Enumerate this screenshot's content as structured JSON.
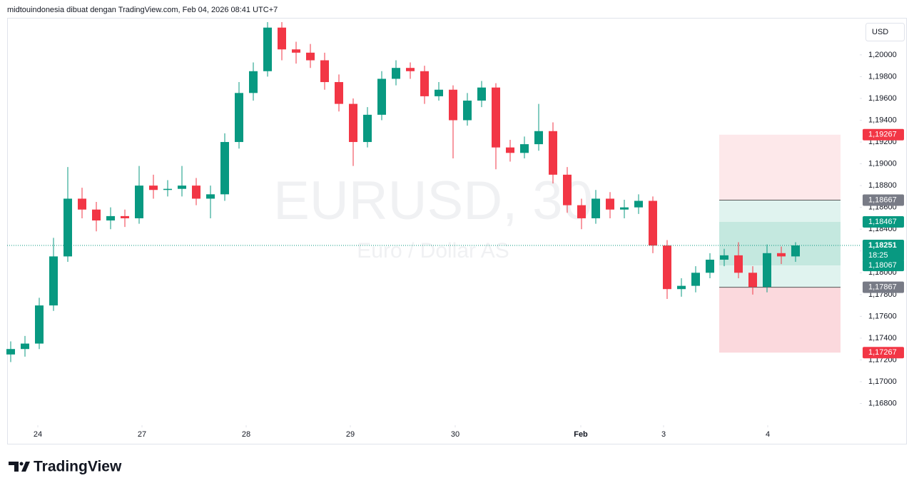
{
  "header": "midtouindonesia dibuat dengan TradingView.com, Feb 04, 2026 08:41 UTC+7",
  "brand": "TradingView",
  "currency_button": "USD",
  "chart_data": {
    "type": "candlestick",
    "symbol": "EURUSD, 30",
    "description": "Euro / Dollar AS",
    "up_color": "#089981",
    "down_color": "#f23645",
    "open": [
      1.1725,
      1.173,
      1.1735,
      1.177,
      1.1815,
      1.1868,
      1.1858,
      1.1848,
      1.1852,
      1.185,
      1.188,
      1.1876,
      1.1877,
      1.188,
      1.1868,
      1.1872,
      1.192,
      1.1965,
      1.1985,
      1.2025,
      1.2005,
      1.2002,
      1.1995,
      1.1975,
      1.1955,
      1.192,
      1.1945,
      1.1978,
      1.1988,
      1.1985,
      1.1962,
      1.1968,
      1.194,
      1.1958,
      1.197,
      1.1915,
      1.191,
      1.1918,
      1.193,
      1.189,
      1.1862,
      1.185,
      1.1868,
      1.1858,
      1.186,
      1.1866,
      1.1825,
      1.1785,
      1.1788,
      1.18,
      1.1812,
      1.1816,
      1.18,
      1.1787,
      1.1818,
      1.1815
    ],
    "high": [
      1.1737,
      1.1742,
      1.1777,
      1.1832,
      1.1897,
      1.1878,
      1.1865,
      1.186,
      1.1858,
      1.1898,
      1.189,
      1.1885,
      1.1898,
      1.1887,
      1.188,
      1.1928,
      1.1975,
      1.1993,
      1.203,
      1.203,
      1.2012,
      1.201,
      1.2002,
      1.1982,
      1.196,
      1.1952,
      1.1985,
      1.1995,
      1.1993,
      1.199,
      1.1975,
      1.1972,
      1.1965,
      1.1976,
      1.1974,
      1.1922,
      1.1925,
      1.1955,
      1.1938,
      1.1897,
      1.1868,
      1.1876,
      1.1874,
      1.1867,
      1.1872,
      1.187,
      1.183,
      1.1795,
      1.1806,
      1.1818,
      1.1822,
      1.1828,
      1.1806,
      1.1826,
      1.1824,
      1.1828
    ],
    "low": [
      1.1718,
      1.1723,
      1.173,
      1.1765,
      1.181,
      1.185,
      1.1838,
      1.184,
      1.1842,
      1.1845,
      1.1868,
      1.187,
      1.187,
      1.1862,
      1.185,
      1.1866,
      1.1914,
      1.1958,
      1.198,
      1.1995,
      1.1992,
      1.1988,
      1.1968,
      1.1948,
      1.1898,
      1.1915,
      1.194,
      1.1972,
      1.1978,
      1.1955,
      1.1958,
      1.1905,
      1.1935,
      1.1952,
      1.1895,
      1.1902,
      1.1905,
      1.1912,
      1.1882,
      1.1855,
      1.184,
      1.1845,
      1.185,
      1.185,
      1.1854,
      1.1818,
      1.1776,
      1.1778,
      1.1782,
      1.1795,
      1.1806,
      1.1795,
      1.178,
      1.1782,
      1.1808,
      1.181
    ],
    "close": [
      1.173,
      1.1735,
      1.177,
      1.1815,
      1.1868,
      1.1858,
      1.1848,
      1.1852,
      1.185,
      1.188,
      1.1876,
      1.1877,
      1.188,
      1.1868,
      1.1872,
      1.192,
      1.1965,
      1.1985,
      1.2025,
      1.2005,
      1.2002,
      1.1995,
      1.1975,
      1.1955,
      1.192,
      1.1945,
      1.1978,
      1.1988,
      1.1985,
      1.1962,
      1.1968,
      1.194,
      1.1958,
      1.197,
      1.1915,
      1.191,
      1.1918,
      1.193,
      1.189,
      1.1862,
      1.185,
      1.1868,
      1.1858,
      1.186,
      1.1866,
      1.1825,
      1.1785,
      1.1788,
      1.18,
      1.1812,
      1.1816,
      1.18,
      1.1787,
      1.1818,
      1.1815,
      1.18251
    ],
    "xlim": [
      -0.25,
      59.5
    ],
    "xticks": [
      {
        "value": 1.9,
        "label": "24"
      },
      {
        "value": 9.2,
        "label": "27"
      },
      {
        "value": 16.5,
        "label": "28"
      },
      {
        "value": 23.8,
        "label": "29"
      },
      {
        "value": 31.15,
        "label": "30"
      },
      {
        "value": 39.95,
        "label": "Feb"
      },
      {
        "value": 45.75,
        "label": "3"
      },
      {
        "value": 53.05,
        "label": "4"
      }
    ],
    "ylim": [
      1.1664,
      1.2032
    ],
    "yticks": [
      {
        "value": 1.168,
        "label": "1,16800"
      },
      {
        "value": 1.17,
        "label": "1,17000"
      },
      {
        "value": 1.172,
        "label": "1,17200"
      },
      {
        "value": 1.174,
        "label": "1,17400"
      },
      {
        "value": 1.176,
        "label": "1,17600"
      },
      {
        "value": 1.178,
        "label": "1,17800"
      },
      {
        "value": 1.18,
        "label": "1,18000"
      },
      {
        "value": 1.182,
        "label": "1,18200"
      },
      {
        "value": 1.184,
        "label": "1,18400"
      },
      {
        "value": 1.186,
        "label": "1,18600"
      },
      {
        "value": 1.188,
        "label": "1,18800"
      },
      {
        "value": 1.19,
        "label": "1,19000"
      },
      {
        "value": 1.192,
        "label": "1,19200"
      },
      {
        "value": 1.194,
        "label": "1,19400"
      },
      {
        "value": 1.196,
        "label": "1,19600"
      },
      {
        "value": 1.198,
        "label": "1,19800"
      },
      {
        "value": 1.2,
        "label": "1,20000"
      }
    ],
    "last_price": {
      "value": 1.18251,
      "label": "1,18251",
      "countdown": "18:25",
      "color": "#089981"
    },
    "position": {
      "x_range": [
        49.65,
        58.15
      ],
      "levels": [
        {
          "value": 1.19267,
          "label": "1,19267",
          "color": "#f23645"
        },
        {
          "value": 1.18667,
          "label": "1,18667",
          "color": "#787b86"
        },
        {
          "value": 1.18467,
          "label": "1,18467",
          "color": "#089981"
        },
        {
          "value": 1.18067,
          "label": "1,18067",
          "color": "#089981"
        },
        {
          "value": 1.17867,
          "label": "1,17867",
          "color": "#787b86"
        },
        {
          "value": 1.17267,
          "label": "1,17267",
          "color": "#f23645"
        }
      ],
      "band_colors": [
        "#fde8ea",
        "#e0f3ef",
        "#c4e8df",
        "#e0f3ef",
        "#fbd9dd"
      ]
    }
  }
}
